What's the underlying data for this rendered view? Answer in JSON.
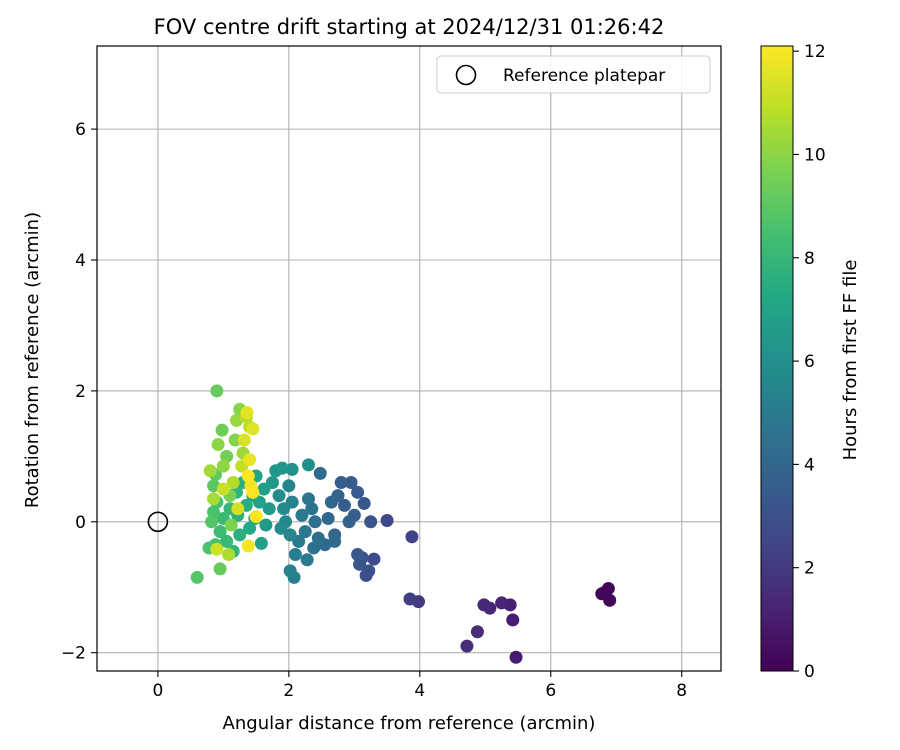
{
  "chart_data": {
    "type": "scatter",
    "title": "FOV centre drift starting at 2024/12/31 01:26:42",
    "xlabel": "Angular distance from reference (arcmin)",
    "ylabel": "Rotation from reference (arcmin)",
    "xlim": [
      -0.93,
      8.6
    ],
    "ylim": [
      -2.28,
      7.27
    ],
    "xticks": [
      0,
      2,
      4,
      6,
      8
    ],
    "yticks": [
      -2,
      0,
      2,
      4,
      6
    ],
    "grid": true,
    "legend": {
      "placement": "top-right",
      "entries": [
        "Reference platepar"
      ]
    },
    "reference_point": {
      "x": 0,
      "y": 0
    },
    "colorbar": {
      "label": "Hours from first FF file",
      "range": [
        0,
        12.1
      ],
      "ticks": [
        0,
        2,
        4,
        6,
        8,
        10,
        12
      ],
      "colormap": "viridis"
    },
    "points": [
      {
        "x": 6.78,
        "y": -1.1,
        "h": 0.1
      },
      {
        "x": 6.88,
        "y": -1.02,
        "h": 0.1
      },
      {
        "x": 6.9,
        "y": -1.2,
        "h": 0.2
      },
      {
        "x": 6.82,
        "y": -1.08,
        "h": 0.2
      },
      {
        "x": 5.47,
        "y": -2.07,
        "h": 0.9
      },
      {
        "x": 5.42,
        "y": -1.5,
        "h": 1.0
      },
      {
        "x": 5.38,
        "y": -1.27,
        "h": 1.1
      },
      {
        "x": 5.25,
        "y": -1.24,
        "h": 1.2
      },
      {
        "x": 5.07,
        "y": -1.32,
        "h": 1.3
      },
      {
        "x": 4.98,
        "y": -1.27,
        "h": 1.4
      },
      {
        "x": 4.88,
        "y": -1.68,
        "h": 1.5
      },
      {
        "x": 4.72,
        "y": -1.9,
        "h": 1.6
      },
      {
        "x": 3.98,
        "y": -1.22,
        "h": 2.0
      },
      {
        "x": 3.85,
        "y": -1.18,
        "h": 2.2
      },
      {
        "x": 3.88,
        "y": -0.23,
        "h": 2.4
      },
      {
        "x": 3.5,
        "y": 0.02,
        "h": 2.6
      },
      {
        "x": 3.3,
        "y": -0.57,
        "h": 2.8
      },
      {
        "x": 3.22,
        "y": -0.75,
        "h": 3.0
      },
      {
        "x": 3.18,
        "y": -0.82,
        "h": 2.9
      },
      {
        "x": 3.12,
        "y": -0.55,
        "h": 3.1
      },
      {
        "x": 3.08,
        "y": -0.65,
        "h": 3.2
      },
      {
        "x": 3.05,
        "y": -0.5,
        "h": 3.3
      },
      {
        "x": 3.25,
        "y": 0.0,
        "h": 3.2
      },
      {
        "x": 3.15,
        "y": 0.28,
        "h": 3.3
      },
      {
        "x": 3.05,
        "y": 0.45,
        "h": 3.4
      },
      {
        "x": 2.95,
        "y": 0.6,
        "h": 3.5
      },
      {
        "x": 2.8,
        "y": 0.6,
        "h": 3.5
      },
      {
        "x": 3.0,
        "y": 0.1,
        "h": 3.6
      },
      {
        "x": 2.92,
        "y": 0.0,
        "h": 3.7
      },
      {
        "x": 2.85,
        "y": 0.25,
        "h": 3.6
      },
      {
        "x": 2.75,
        "y": 0.4,
        "h": 3.8
      },
      {
        "x": 2.7,
        "y": -0.2,
        "h": 3.9
      },
      {
        "x": 2.6,
        "y": 0.05,
        "h": 4.0
      },
      {
        "x": 2.65,
        "y": 0.3,
        "h": 4.0
      },
      {
        "x": 2.55,
        "y": -0.35,
        "h": 4.1
      },
      {
        "x": 2.7,
        "y": -0.3,
        "h": 4.2
      },
      {
        "x": 2.48,
        "y": 0.74,
        "h": 4.3
      },
      {
        "x": 2.45,
        "y": -0.25,
        "h": 4.4
      },
      {
        "x": 2.4,
        "y": 0.0,
        "h": 4.4
      },
      {
        "x": 2.38,
        "y": -0.4,
        "h": 4.5
      },
      {
        "x": 2.35,
        "y": 0.2,
        "h": 4.6
      },
      {
        "x": 2.3,
        "y": 0.35,
        "h": 4.7
      },
      {
        "x": 2.25,
        "y": -0.15,
        "h": 4.8
      },
      {
        "x": 2.28,
        "y": -0.58,
        "h": 4.9
      },
      {
        "x": 2.2,
        "y": 0.1,
        "h": 4.9
      },
      {
        "x": 2.15,
        "y": -0.3,
        "h": 5.0
      },
      {
        "x": 2.1,
        "y": -0.5,
        "h": 5.1
      },
      {
        "x": 2.08,
        "y": -0.85,
        "h": 5.2
      },
      {
        "x": 2.02,
        "y": -0.75,
        "h": 5.3
      },
      {
        "x": 2.05,
        "y": 0.3,
        "h": 5.3
      },
      {
        "x": 2.0,
        "y": 0.55,
        "h": 5.4
      },
      {
        "x": 2.02,
        "y": -0.2,
        "h": 5.5
      },
      {
        "x": 1.95,
        "y": 0.0,
        "h": 5.6
      },
      {
        "x": 1.92,
        "y": 0.2,
        "h": 5.7
      },
      {
        "x": 1.88,
        "y": -0.1,
        "h": 5.8
      },
      {
        "x": 1.85,
        "y": 0.4,
        "h": 5.9
      },
      {
        "x": 2.3,
        "y": 0.87,
        "h": 6.0
      },
      {
        "x": 2.05,
        "y": 0.8,
        "h": 6.1
      },
      {
        "x": 1.9,
        "y": 0.82,
        "h": 6.2
      },
      {
        "x": 1.8,
        "y": 0.78,
        "h": 6.3
      },
      {
        "x": 1.75,
        "y": 0.6,
        "h": 6.4
      },
      {
        "x": 1.7,
        "y": 0.2,
        "h": 6.5
      },
      {
        "x": 1.65,
        "y": -0.05,
        "h": 6.6
      },
      {
        "x": 1.62,
        "y": 0.5,
        "h": 6.7
      },
      {
        "x": 1.58,
        "y": -0.33,
        "h": 6.8
      },
      {
        "x": 1.55,
        "y": 0.3,
        "h": 6.9
      },
      {
        "x": 1.5,
        "y": 0.7,
        "h": 7.0
      },
      {
        "x": 1.48,
        "y": 0.05,
        "h": 7.1
      },
      {
        "x": 1.45,
        "y": 0.4,
        "h": 7.2
      },
      {
        "x": 1.4,
        "y": -0.1,
        "h": 7.3
      },
      {
        "x": 1.35,
        "y": 0.25,
        "h": 7.4
      },
      {
        "x": 1.3,
        "y": 0.6,
        "h": 7.5
      },
      {
        "x": 1.25,
        "y": -0.2,
        "h": 7.6
      },
      {
        "x": 1.22,
        "y": 0.1,
        "h": 7.7
      },
      {
        "x": 1.2,
        "y": 0.45,
        "h": 7.8
      },
      {
        "x": 1.15,
        "y": -0.45,
        "h": 7.9
      },
      {
        "x": 1.1,
        "y": 0.2,
        "h": 8.0
      },
      {
        "x": 1.05,
        "y": -0.3,
        "h": 8.1
      },
      {
        "x": 1.0,
        "y": 0.05,
        "h": 8.2
      },
      {
        "x": 0.95,
        "y": -0.15,
        "h": 8.3
      },
      {
        "x": 0.9,
        "y": 0.3,
        "h": 8.4
      },
      {
        "x": 0.88,
        "y": -0.35,
        "h": 8.5
      },
      {
        "x": 0.85,
        "y": 0.15,
        "h": 8.6
      },
      {
        "x": 0.78,
        "y": -0.4,
        "h": 8.7
      },
      {
        "x": 0.82,
        "y": 0.0,
        "h": 8.8
      },
      {
        "x": 0.6,
        "y": -0.85,
        "h": 8.9
      },
      {
        "x": 0.85,
        "y": 0.55,
        "h": 9.0
      },
      {
        "x": 0.88,
        "y": 0.72,
        "h": 9.1
      },
      {
        "x": 0.95,
        "y": -0.72,
        "h": 9.2
      },
      {
        "x": 0.9,
        "y": 2.0,
        "h": 9.3
      },
      {
        "x": 0.98,
        "y": 1.4,
        "h": 9.4
      },
      {
        "x": 1.05,
        "y": 1.0,
        "h": 9.5
      },
      {
        "x": 1.1,
        "y": 0.4,
        "h": 9.6
      },
      {
        "x": 1.12,
        "y": -0.05,
        "h": 9.7
      },
      {
        "x": 1.18,
        "y": 1.25,
        "h": 9.8
      },
      {
        "x": 1.25,
        "y": 1.72,
        "h": 9.9
      },
      {
        "x": 0.92,
        "y": 1.18,
        "h": 10.0
      },
      {
        "x": 1.0,
        "y": 0.85,
        "h": 10.1
      },
      {
        "x": 1.2,
        "y": 1.55,
        "h": 10.2
      },
      {
        "x": 1.3,
        "y": 1.05,
        "h": 10.3
      },
      {
        "x": 0.8,
        "y": 0.78,
        "h": 10.4
      },
      {
        "x": 0.85,
        "y": 0.35,
        "h": 10.5
      },
      {
        "x": 1.08,
        "y": -0.5,
        "h": 10.6
      },
      {
        "x": 1.15,
        "y": 0.6,
        "h": 10.7
      },
      {
        "x": 1.35,
        "y": 1.6,
        "h": 10.8
      },
      {
        "x": 1.4,
        "y": 1.45,
        "h": 10.9
      },
      {
        "x": 1.28,
        "y": 0.85,
        "h": 11.0
      },
      {
        "x": 1.0,
        "y": 0.5,
        "h": 11.1
      },
      {
        "x": 0.9,
        "y": -0.42,
        "h": 11.2
      },
      {
        "x": 1.22,
        "y": 0.2,
        "h": 11.3
      },
      {
        "x": 1.32,
        "y": 1.25,
        "h": 11.4
      },
      {
        "x": 1.45,
        "y": 1.42,
        "h": 11.5
      },
      {
        "x": 1.36,
        "y": 1.67,
        "h": 11.6
      },
      {
        "x": 1.4,
        "y": 0.95,
        "h": 11.7
      },
      {
        "x": 1.42,
        "y": 0.55,
        "h": 11.8
      },
      {
        "x": 1.38,
        "y": -0.37,
        "h": 11.9
      },
      {
        "x": 1.5,
        "y": 0.08,
        "h": 12.0
      },
      {
        "x": 1.45,
        "y": 0.45,
        "h": 12.0
      },
      {
        "x": 1.38,
        "y": 0.7,
        "h": 12.1
      }
    ]
  }
}
